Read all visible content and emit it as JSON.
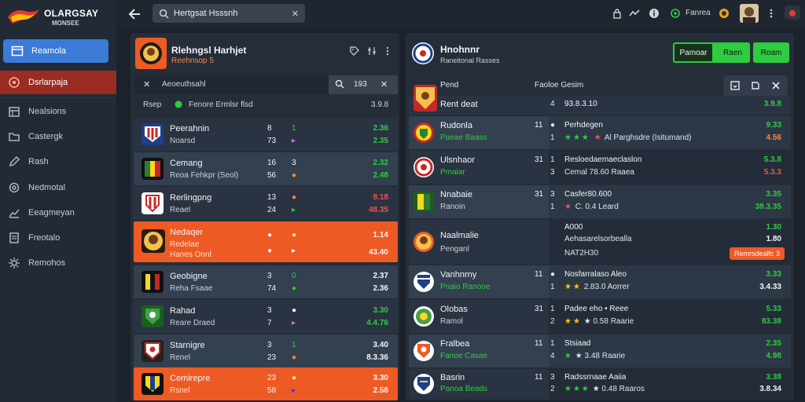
{
  "app": {
    "logo_text": "OLARGSAY",
    "logo_sub": "MONSEE"
  },
  "sidebar": {
    "items": [
      {
        "label": "Reamola",
        "icon": "window-icon"
      },
      {
        "label": "Dsrlarpaja",
        "icon": "target-icon"
      },
      {
        "label": "Nealsions",
        "icon": "calendar-icon"
      },
      {
        "label": "Castergk",
        "icon": "folder-icon"
      },
      {
        "label": "Rash",
        "icon": "edit-icon"
      },
      {
        "label": "Nedmotal",
        "icon": "settings-icon"
      },
      {
        "label": "Eeagmeyan",
        "icon": "chart-icon"
      },
      {
        "label": "Freotalo",
        "icon": "document-icon"
      },
      {
        "label": "Remohos",
        "icon": "gear-icon"
      }
    ]
  },
  "topbar": {
    "search_value": "Hertgsat Hsssnh",
    "label": "Fanrea"
  },
  "left_panel": {
    "title": "Rlehngsl Harhjet",
    "subtitle": "Reehnsop 5",
    "filter_label": "Aeoeuthsahl",
    "filter_value": "193",
    "cols": {
      "a": "Rsep",
      "b": "Fenore Ermlsr flsd",
      "c": "3.9.8"
    },
    "rows": [
      {
        "name": "Peerahnin",
        "sub": "Noarsd",
        "n1": "8",
        "n2": "73",
        "g1": "1",
        "g2": "▸",
        "v1": "2.36",
        "v2": "2.35",
        "c1": "green",
        "c2": "green"
      },
      {
        "name": "Cemang",
        "sub": "Reoa Fehkpr (Seol)",
        "n1": "16",
        "n2": "56",
        "g1": "3",
        "g2": "●",
        "v1": "2.32",
        "v2": "2.48",
        "c1": "green",
        "c2": "green"
      },
      {
        "name": "Rerlingpng",
        "sub": "Reael",
        "n1": "13",
        "n2": "24",
        "g1": "●",
        "g2": "▸",
        "v1": "8.18",
        "v2": "48.35",
        "c1": "red",
        "c2": "red"
      },
      {
        "name": "Nedaqer",
        "sub": "Redelae",
        "sub2": "Hanes Onnl",
        "n1": "●",
        "n2": "●",
        "g1": "●",
        "g2": "▸",
        "v1": "1.14",
        "v2": "43.40",
        "c1": "white",
        "c2": "white"
      },
      {
        "name": "Geobigne",
        "sub": "Reha Fsaae",
        "n1": "3",
        "n2": "74",
        "g1": "0",
        "g2": "●",
        "v1": "2.37",
        "v2": "2.36",
        "c1": "white",
        "c2": "white"
      },
      {
        "name": "Rahad",
        "sub": "Reare Draed",
        "n1": "3",
        "n2": "7",
        "g1": "●",
        "g2": "▸",
        "v1": "3.30",
        "v2": "4.4.76",
        "c1": "green",
        "c2": "green"
      },
      {
        "name": "Starnigre",
        "sub": "Renel",
        "n1": "3",
        "n2": "23",
        "g1": "1",
        "g2": "●",
        "v1": "3.40",
        "v2": "8.3.36",
        "c1": "white",
        "c2": "white"
      },
      {
        "name": "Cemirepre",
        "sub": "Rsnel",
        "n1": "23",
        "n2": "58",
        "g1": "●",
        "g2": "▸",
        "v1": "3.30",
        "v2": "2.58",
        "c1": "white",
        "c2": "white"
      }
    ]
  },
  "right_panel": {
    "title": "Hnohnnr",
    "subtitle": "Raneitonal Rasses",
    "buttons": [
      "Pamoar",
      "Raen",
      "Roam"
    ],
    "cols": {
      "a": "Pend",
      "b": "Faoloe Gesim"
    },
    "header_row": {
      "name": "Rent deat",
      "idx": "4",
      "label": "93.8.3.10",
      "value": "3.9.8"
    },
    "rows": [
      {
        "name": "Rudonla",
        "sub": "Paeae Baass",
        "num": "11",
        "i1": "●",
        "i2": "1",
        "label": "Perhdegen",
        "det": "Al Parghsdre (Isitumand)",
        "stars": 3,
        "v1": "9.33",
        "v2": "4.56",
        "c2": "orange"
      },
      {
        "name": "Ulsnhaor",
        "sub": "Pmaiar",
        "num": "31",
        "i1": "1",
        "i2": "3",
        "label": "Resloedaemaeclaslon",
        "det": "Cemal 78.60 Raaea",
        "stars": 0,
        "v1": "5.3.8",
        "v2": "5.3.3",
        "c2": "red"
      },
      {
        "name": "Nnabaie",
        "sub": "Ranoin",
        "num": "31",
        "i1": "3",
        "i2": "1",
        "label": "Casfer80.600",
        "det": "C. 0.4 Leard",
        "stars": 1,
        "v1": "3.35",
        "v2": "38.3.35",
        "c2": "green"
      },
      {
        "name": "Naalmalie",
        "sub": "Penganl",
        "num": "",
        "i1": "",
        "i2": "",
        "label": "A000",
        "det": "Aehasarelsorbealla",
        "det2": "NAT2H30",
        "stars": -1,
        "v1": "1.30",
        "v2": "1.80",
        "pill": "Remrsdealfc 3",
        "c2": "white"
      },
      {
        "name": "Vanhnrny",
        "sub": "Pnaio Ranooe",
        "num": "11",
        "i1": "●",
        "i2": "1",
        "label": "Nosfarralaso Aleo",
        "det": "2.83.0 Aorrer",
        "stars": 2,
        "v1": "3.33",
        "v2": "3.4.33",
        "c2": "white",
        "c_label": "orange"
      },
      {
        "name": "Olobas",
        "sub": "Ramol",
        "num": "31",
        "i1": "1",
        "i2": "2",
        "label": "Padee eho • Reee",
        "det": "★ 0.58 Raarie",
        "stars": 2,
        "v1": "5.33",
        "v2": "83.38",
        "c2": "green",
        "c_label": "orange"
      },
      {
        "name": "Fralbea",
        "sub": "Fanoe Casae",
        "num": "11",
        "i1": "1",
        "i2": "4",
        "label": "Stsiaad",
        "det": "★ 3.48 Raarie",
        "stars": 1,
        "v1": "2.35",
        "v2": "4.98",
        "c2": "green"
      },
      {
        "name": "Basrin",
        "sub": "Panoa Beads",
        "num": "11",
        "i1": "3",
        "i2": "2",
        "label": "Radssrnaae Aaiia",
        "det": "★ 0.48 Raaros",
        "stars": 3,
        "v1": "3.38",
        "v2": "3.8.34",
        "c2": "white"
      }
    ]
  },
  "colors": {
    "accent": "#3b7bd6",
    "orange": "#ee5a24",
    "green": "#2ecc40",
    "red": "#ef5350",
    "bg": "#1b222c"
  }
}
